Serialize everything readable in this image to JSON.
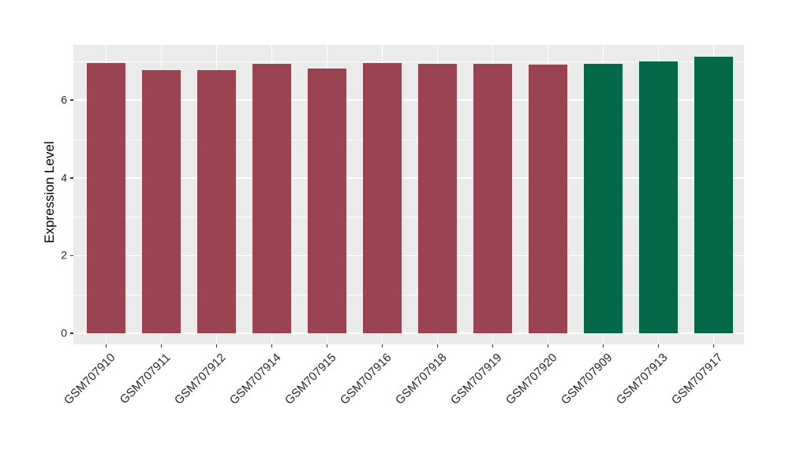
{
  "figure": {
    "background": "#FFFFFF",
    "panel_background": "#EBEBEB",
    "grid_color": "#FFFFFF",
    "tick_color": "#333333",
    "axis_text_color": "#262626"
  },
  "chart_data": {
    "type": "bar",
    "title": "",
    "xlabel": "",
    "ylabel": "Expression Level",
    "categories": [
      "GSM707910",
      "GSM707911",
      "GSM707912",
      "GSM707914",
      "GSM707915",
      "GSM707916",
      "GSM707918",
      "GSM707919",
      "GSM707920",
      "GSM707909",
      "GSM707913",
      "GSM707917"
    ],
    "values": [
      6.95,
      6.78,
      6.78,
      6.94,
      6.81,
      6.95,
      6.94,
      6.93,
      6.92,
      6.94,
      7.0,
      7.12
    ],
    "bar_colors": [
      "#9A4452",
      "#9A4452",
      "#9A4452",
      "#9A4452",
      "#9A4452",
      "#9A4452",
      "#9A4452",
      "#9A4452",
      "#9A4452",
      "#056849",
      "#056849",
      "#056849"
    ],
    "group_colors": {
      "maroon_group": "#9A4452",
      "green_group": "#056849"
    },
    "yticks": [
      0,
      2,
      4,
      6
    ],
    "yticks_minor": [
      1,
      3,
      5,
      7
    ],
    "ylim": [
      -0.28,
      7.42
    ],
    "x_label_rotation_deg": 45,
    "grid": "horizontal major+minor white lines; vertical white lines at category centers",
    "legend": "none"
  }
}
